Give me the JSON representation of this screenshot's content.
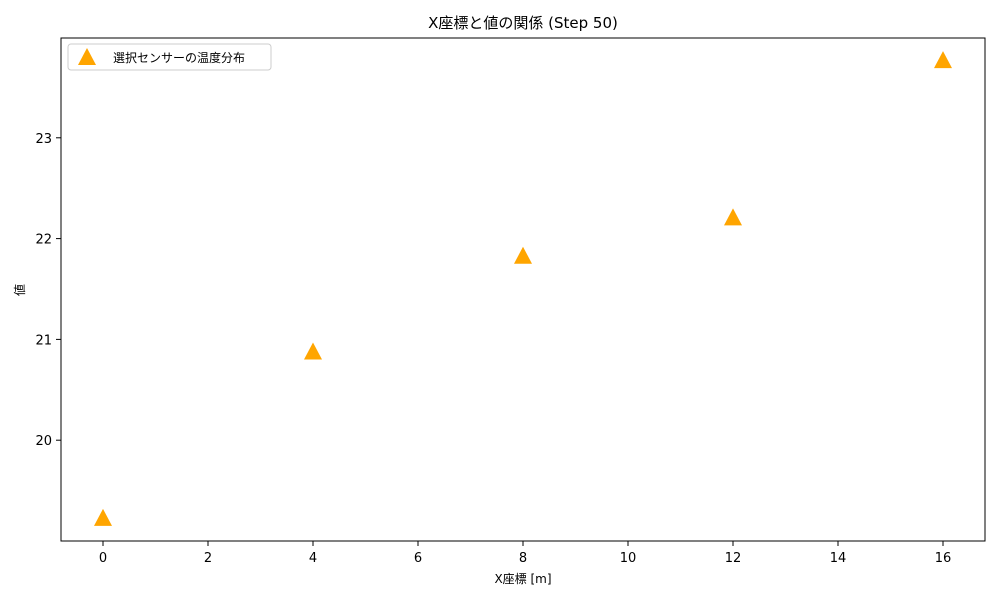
{
  "chart_data": {
    "type": "scatter",
    "title": "X座標と値の関係 (Step 50)",
    "xlabel": "X座標 [m]",
    "ylabel": "値",
    "xlim": [
      -0.8,
      16.8
    ],
    "ylim": [
      19.0,
      23.99
    ],
    "x_ticks": [
      0,
      2,
      4,
      6,
      8,
      10,
      12,
      14,
      16
    ],
    "y_ticks": [
      20,
      21,
      22,
      23
    ],
    "grid": false,
    "legend_position": "top-left",
    "series": [
      {
        "name": "選択センサーの温度分布",
        "marker": "triangle",
        "color": "#FFA500",
        "x": [
          0,
          4,
          8,
          12,
          16
        ],
        "y": [
          19.22,
          20.87,
          21.82,
          22.2,
          23.76
        ]
      }
    ]
  }
}
